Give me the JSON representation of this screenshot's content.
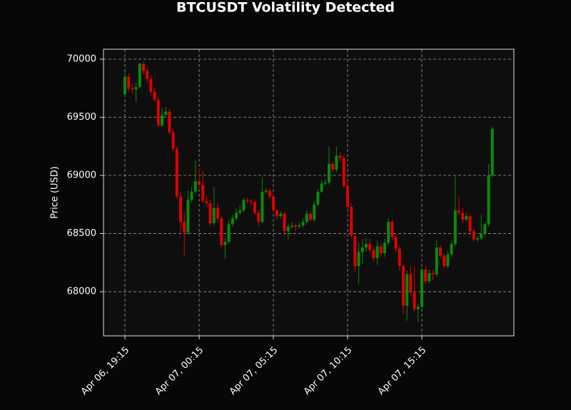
{
  "chart_data": {
    "type": "candlestick",
    "title": "BTCUSDT Volatility Detected",
    "ylabel": "Price (USD)",
    "x": [
      "Apr 06, 19:15",
      "Apr 06, 19:30",
      "Apr 06, 19:45",
      "Apr 06, 20:00",
      "Apr 06, 20:15",
      "Apr 06, 20:30",
      "Apr 06, 20:45",
      "Apr 06, 21:00",
      "Apr 06, 21:15",
      "Apr 06, 21:30",
      "Apr 06, 21:45",
      "Apr 06, 22:00",
      "Apr 06, 22:15",
      "Apr 06, 22:30",
      "Apr 06, 22:45",
      "Apr 06, 23:00",
      "Apr 06, 23:15",
      "Apr 06, 23:30",
      "Apr 06, 23:45",
      "Apr 07, 00:00",
      "Apr 07, 00:15",
      "Apr 07, 00:30",
      "Apr 07, 00:45",
      "Apr 07, 01:00",
      "Apr 07, 01:15",
      "Apr 07, 01:30",
      "Apr 07, 01:45",
      "Apr 07, 02:00",
      "Apr 07, 02:15",
      "Apr 07, 02:30",
      "Apr 07, 02:45",
      "Apr 07, 03:00",
      "Apr 07, 03:15",
      "Apr 07, 03:30",
      "Apr 07, 03:45",
      "Apr 07, 04:00",
      "Apr 07, 04:15",
      "Apr 07, 04:30",
      "Apr 07, 04:45",
      "Apr 07, 05:00",
      "Apr 07, 05:15",
      "Apr 07, 05:30",
      "Apr 07, 05:45",
      "Apr 07, 06:00",
      "Apr 07, 06:15",
      "Apr 07, 06:30",
      "Apr 07, 06:45",
      "Apr 07, 07:00",
      "Apr 07, 07:15",
      "Apr 07, 07:30",
      "Apr 07, 07:45",
      "Apr 07, 08:00",
      "Apr 07, 08:15",
      "Apr 07, 08:30",
      "Apr 07, 08:45",
      "Apr 07, 09:00",
      "Apr 07, 09:15",
      "Apr 07, 09:30",
      "Apr 07, 09:45",
      "Apr 07, 10:00",
      "Apr 07, 10:15",
      "Apr 07, 10:30",
      "Apr 07, 10:45",
      "Apr 07, 11:00",
      "Apr 07, 11:15",
      "Apr 07, 11:30",
      "Apr 07, 11:45",
      "Apr 07, 12:00",
      "Apr 07, 12:15",
      "Apr 07, 12:30",
      "Apr 07, 12:45",
      "Apr 07, 13:00",
      "Apr 07, 13:15",
      "Apr 07, 13:30",
      "Apr 07, 13:45",
      "Apr 07, 14:00",
      "Apr 07, 14:15",
      "Apr 07, 14:30",
      "Apr 07, 14:45",
      "Apr 07, 15:00",
      "Apr 07, 15:15",
      "Apr 07, 15:30",
      "Apr 07, 15:45",
      "Apr 07, 16:00",
      "Apr 07, 16:15",
      "Apr 07, 16:30",
      "Apr 07, 16:45",
      "Apr 07, 17:00",
      "Apr 07, 17:15",
      "Apr 07, 17:30",
      "Apr 07, 17:45",
      "Apr 07, 18:00",
      "Apr 07, 18:15",
      "Apr 07, 18:30",
      "Apr 07, 18:45",
      "Apr 07, 19:00",
      "Apr 07, 19:15",
      "Apr 07, 19:30",
      "Apr 07, 19:45",
      "Apr 07, 20:00"
    ],
    "open": [
      69700,
      69850,
      69750,
      69740,
      69760,
      69960,
      69900,
      69830,
      69720,
      69650,
      69430,
      69520,
      69550,
      69370,
      69230,
      68820,
      68600,
      68510,
      68790,
      68860,
      68950,
      68920,
      68780,
      68760,
      68590,
      68720,
      68630,
      68400,
      68430,
      68580,
      68630,
      68680,
      68700,
      68790,
      68780,
      68770,
      68680,
      68600,
      68860,
      68870,
      68820,
      68700,
      68650,
      68670,
      68520,
      68560,
      68570,
      68560,
      68570,
      68600,
      68670,
      68620,
      68750,
      68860,
      68930,
      68940,
      69100,
      69050,
      69170,
      69150,
      68910,
      68730,
      68480,
      68220,
      68340,
      68380,
      68410,
      68360,
      68290,
      68390,
      68330,
      68420,
      68600,
      68470,
      68370,
      68220,
      67880,
      68150,
      67990,
      67850,
      67870,
      68190,
      68090,
      68160,
      68150,
      68380,
      68310,
      68220,
      68320,
      68410,
      68700,
      68680,
      68620,
      68650,
      68520,
      68450,
      68460,
      68500,
      68580,
      69000
    ],
    "high": [
      69890,
      69880,
      69790,
      69800,
      69970,
      69980,
      69930,
      69860,
      69760,
      69680,
      69580,
      69590,
      69570,
      69400,
      69250,
      68850,
      68690,
      68870,
      68900,
      69130,
      69060,
      69040,
      68820,
      68790,
      68900,
      68760,
      68650,
      68460,
      68620,
      68660,
      68720,
      68740,
      68810,
      68810,
      68800,
      68790,
      68710,
      68980,
      68890,
      68890,
      68850,
      68710,
      68690,
      68690,
      68580,
      68600,
      68590,
      68590,
      68630,
      68700,
      68690,
      68780,
      68880,
      68960,
      68970,
      69250,
      69120,
      69250,
      69200,
      69180,
      68950,
      68760,
      68490,
      68420,
      68450,
      68460,
      68460,
      68390,
      68440,
      68420,
      68460,
      68630,
      68620,
      68500,
      68390,
      68240,
      68180,
      68220,
      68220,
      67900,
      68210,
      68220,
      68190,
      68190,
      68440,
      68400,
      68330,
      68350,
      68440,
      68990,
      68820,
      68720,
      68680,
      68670,
      68540,
      68480,
      68660,
      68600,
      69100,
      69420
    ],
    "low": [
      69670,
      69720,
      69700,
      69630,
      69750,
      69870,
      69800,
      69690,
      69630,
      69420,
      69420,
      69500,
      69350,
      69200,
      68800,
      68500,
      68300,
      68490,
      68770,
      68840,
      68890,
      68760,
      68740,
      68560,
      68570,
      68600,
      68380,
      68280,
      68410,
      68560,
      68610,
      68660,
      68680,
      68760,
      68740,
      68660,
      68560,
      68590,
      68840,
      68800,
      68680,
      68620,
      68630,
      68490,
      68450,
      68540,
      68520,
      68540,
      68550,
      68580,
      68600,
      68600,
      68740,
      68850,
      68910,
      68920,
      69030,
      69030,
      69120,
      68890,
      68710,
      68460,
      68170,
      68070,
      68240,
      68350,
      68330,
      68260,
      68230,
      68300,
      68300,
      68400,
      68440,
      68340,
      68180,
      67810,
      67750,
      67960,
      67830,
      67740,
      67850,
      68070,
      68070,
      68100,
      68130,
      68290,
      68200,
      68200,
      68300,
      68390,
      68660,
      68590,
      68600,
      68490,
      68430,
      68430,
      68440,
      68470,
      68560,
      68980
    ],
    "close": [
      69850,
      69750,
      69740,
      69760,
      69960,
      69900,
      69830,
      69720,
      69650,
      69430,
      69520,
      69550,
      69370,
      69230,
      68820,
      68600,
      68510,
      68790,
      68860,
      68950,
      68920,
      68780,
      68760,
      68590,
      68720,
      68630,
      68400,
      68430,
      68580,
      68630,
      68680,
      68700,
      68790,
      68780,
      68770,
      68680,
      68600,
      68860,
      68870,
      68820,
      68700,
      68650,
      68670,
      68520,
      68560,
      68570,
      68560,
      68570,
      68600,
      68670,
      68620,
      68750,
      68860,
      68930,
      68940,
      69100,
      69050,
      69170,
      69150,
      68910,
      68730,
      68480,
      68220,
      68340,
      68380,
      68410,
      68360,
      68290,
      68390,
      68330,
      68420,
      68600,
      68470,
      68370,
      68220,
      67880,
      68150,
      67990,
      67850,
      67870,
      68190,
      68090,
      68160,
      68150,
      68380,
      68310,
      68220,
      68320,
      68410,
      68700,
      68680,
      68620,
      68650,
      68520,
      68450,
      68460,
      68500,
      68580,
      69000,
      69400
    ],
    "up_color": "#0a8a0a",
    "down_color": "#e00000",
    "ylim": [
      67620,
      70086
    ],
    "yticks": [
      68000,
      68500,
      69000,
      69500,
      70000
    ],
    "xticks": [
      "Apr 06, 19:15",
      "Apr 07, 00:15",
      "Apr 07, 05:15",
      "Apr 07, 10:15",
      "Apr 07, 15:15"
    ],
    "grid": true
  }
}
